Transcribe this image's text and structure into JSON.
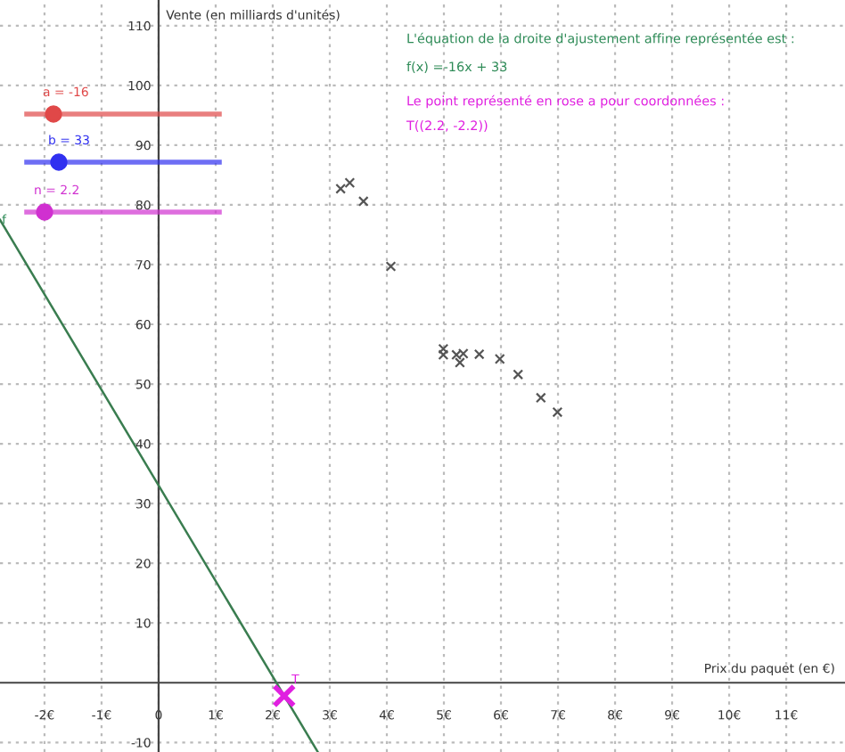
{
  "chart_data": {
    "type": "scatter",
    "xlabel": "Prix du paquet (en €)",
    "ylabel": "Vente (en milliards d'unités)",
    "xlim": [
      -2.78,
      12.03
    ],
    "ylim": [
      -11.6,
      114.3
    ],
    "xticks": [
      {
        "value": -2,
        "label": "-2€"
      },
      {
        "value": -1,
        "label": "-1€"
      },
      0,
      {
        "value": 1,
        "label": "1€"
      },
      {
        "value": 2,
        "label": "2€"
      },
      {
        "value": 3,
        "label": "3€"
      },
      {
        "value": 4,
        "label": "4€"
      },
      {
        "value": 5,
        "label": "5€"
      },
      {
        "value": 6,
        "label": "6€"
      },
      {
        "value": 7,
        "label": "7€"
      },
      {
        "value": 8,
        "label": "8€"
      },
      {
        "value": 9,
        "label": "9€"
      },
      {
        "value": 10,
        "label": "10€"
      },
      {
        "value": 11,
        "label": "11€"
      }
    ],
    "yticks": [
      -10,
      10,
      20,
      30,
      40,
      50,
      60,
      70,
      80,
      90,
      100,
      110
    ],
    "grid": true,
    "series": [
      {
        "color": "#555555",
        "marker": "cross",
        "x": [
          3.19,
          3.35,
          3.59,
          4.07,
          4.99,
          4.99,
          5.22,
          5.34,
          5.28,
          5.62,
          5.98,
          6.3,
          6.7,
          6.99
        ],
        "values": [
          82.7,
          83.7,
          80.6,
          69.7,
          55.9,
          54.9,
          54.9,
          55.1,
          53.6,
          55.0,
          54.2,
          51.6,
          47.7,
          45.3
        ]
      },
      {
        "type": "line",
        "color": "#3a7d50",
        "x": [
          -2.78,
          2.79
        ],
        "values": [
          77.5,
          -11.6
        ]
      },
      {
        "color": "#e020e0",
        "marker": "cross",
        "x": [
          2.2
        ],
        "values": [
          -2.2
        ]
      }
    ],
    "annotations": [
      "L'équation de la droite d'ajustement affine représentée est :",
      "f(x) =-16x + 33",
      "Le point représenté en rose a pour coordonnées :",
      "T((2.2, -2.2))",
      {
        "text": "T",
        "x": 2.2,
        "y": -2.2
      },
      {
        "text": "f",
        "x": -2.66,
        "y": 75.6
      },
      "a = -16",
      "b = 33",
      "n = 2.2"
    ]
  }
}
